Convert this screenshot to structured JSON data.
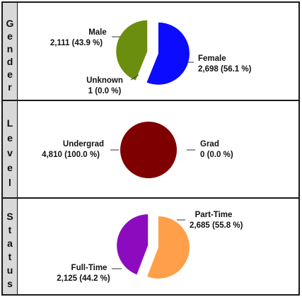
{
  "panels": [
    {
      "side_label": "Gender",
      "slices": [
        {
          "name": "Male",
          "count": "2,111",
          "pct": "(43.9 %)",
          "color": "#6b8e0f"
        },
        {
          "name": "Female",
          "count": "2,698",
          "pct": "(56.1 %)",
          "color": "#0b0bff"
        },
        {
          "name": "Unknown",
          "count": "1",
          "pct": "(0.0 %)",
          "color": "#999999"
        }
      ]
    },
    {
      "side_label": "Level",
      "slices": [
        {
          "name": "Undergrad",
          "count": "4,810",
          "pct": "(100.0 %)",
          "color": "#7f0000"
        },
        {
          "name": "Grad",
          "count": "0",
          "pct": "(0.0 %)",
          "color": "#333333"
        }
      ]
    },
    {
      "side_label": "Status",
      "slices": [
        {
          "name": "Part-Time",
          "count": "2,685",
          "pct": "(55.8 %)",
          "color": "#ff9f4a"
        },
        {
          "name": "Full-Time",
          "count": "2,125",
          "pct": "(44.2 %)",
          "color": "#8d0bbf"
        }
      ]
    }
  ],
  "chart_data": [
    {
      "type": "pie",
      "categories": [
        "Male",
        "Female",
        "Unknown"
      ],
      "values": [
        2111,
        2698,
        1
      ],
      "percents": [
        43.9,
        56.1,
        0.0
      ],
      "exploded": "Male"
    },
    {
      "type": "pie",
      "categories": [
        "Undergrad",
        "Grad"
      ],
      "values": [
        4810,
        0
      ],
      "percents": [
        100.0,
        0.0
      ]
    },
    {
      "type": "pie",
      "categories": [
        "Part-Time",
        "Full-Time"
      ],
      "values": [
        2685,
        2125
      ],
      "percents": [
        55.8,
        44.2
      ],
      "exploded": "Full-Time"
    }
  ]
}
